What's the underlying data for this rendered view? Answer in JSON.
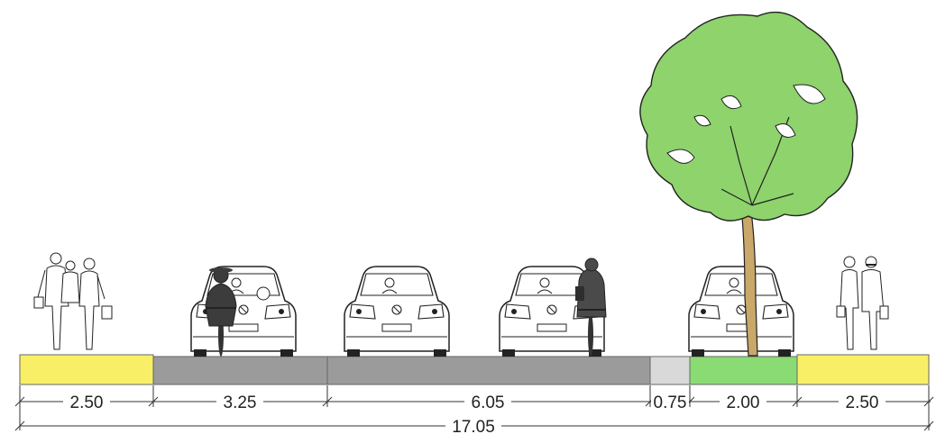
{
  "colors": {
    "sidewalk": "#f8ef67",
    "carriageway": "#9b9b9b",
    "buffer": "#d9d9d9",
    "planting_strip": "#8adb74",
    "tree_canopy": "#8ed36c",
    "tree_trunk": "#c9a86a"
  },
  "icons": [
    "pedestrians-icon",
    "cyclist-icon",
    "car-rear-icon",
    "tree-icon"
  ],
  "sections": [
    {
      "label": "2.50",
      "width_m": 2.5,
      "surface": "sidewalk"
    },
    {
      "label": "3.25",
      "width_m": 3.25,
      "surface": "carriageway"
    },
    {
      "label": "6.05",
      "width_m": 6.05,
      "surface": "carriageway"
    },
    {
      "label": "0.75",
      "width_m": 0.75,
      "surface": "buffer"
    },
    {
      "label": "2.00",
      "width_m": 2.0,
      "surface": "planting_strip"
    },
    {
      "label": "2.50",
      "width_m": 2.5,
      "surface": "sidewalk"
    }
  ],
  "total": {
    "label": "17.05",
    "width_m": 17.05
  }
}
